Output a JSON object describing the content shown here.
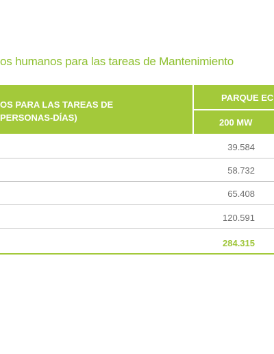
{
  "caption": "os humanos para las tareas de Mantenimiento",
  "table": {
    "header_left_line1": "OS PARA LAS TAREAS DE",
    "header_left_line2": "PERSONAS-DÍAS)",
    "group_header": "PARQUE EC",
    "sub_header": "200 MW",
    "rows": [
      "39.584",
      "58.732",
      "65.408",
      "120.591"
    ],
    "total": "284.315"
  },
  "colors": {
    "accent": "#a3c93a",
    "caption": "#8dbf2e",
    "value_text": "#6b6b6b",
    "separator": "#c6c6c6"
  }
}
